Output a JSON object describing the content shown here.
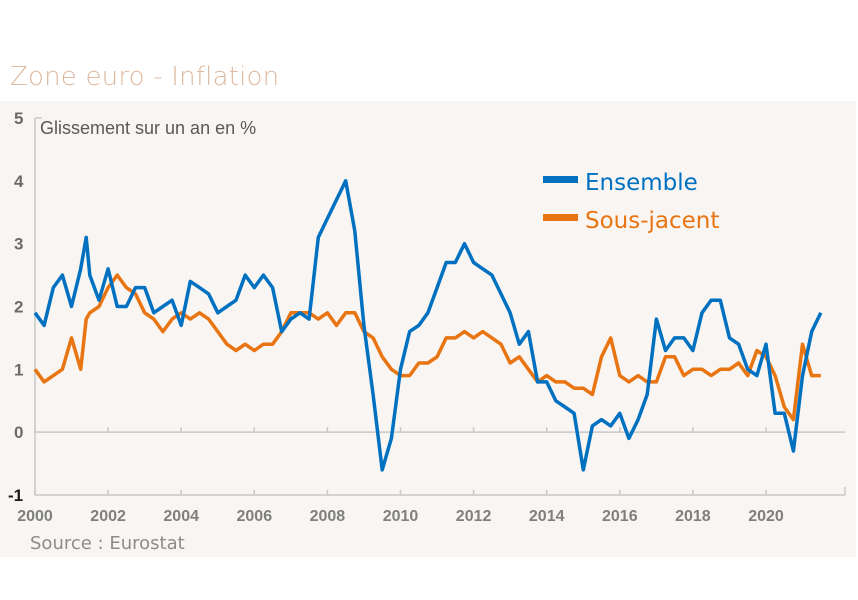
{
  "title": "Zone euro - Inflation",
  "source": "Source : Eurostat",
  "chart_data": {
    "type": "line",
    "title": "Zone euro - Inflation",
    "subtitle": "Glissement sur un an en %",
    "xlabel": "",
    "ylabel": "Glissement sur un an en %",
    "xlim": [
      2000,
      2022
    ],
    "ylim": [
      -1,
      5
    ],
    "x_ticks": [
      "2000",
      "2002",
      "2004",
      "2006",
      "2008",
      "2010",
      "2012",
      "2014",
      "2016",
      "2018",
      "2020"
    ],
    "y_ticks": [
      "5",
      "4",
      "3",
      "2",
      "1",
      "0",
      "-1"
    ],
    "grid": false,
    "legend_position": "top-right",
    "colors": {
      "Ensemble": "#0070c0",
      "Sous-jacent": "#e87511"
    },
    "x": [
      2000.0,
      2000.25,
      2000.5,
      2000.75,
      2001.0,
      2001.25,
      2001.4,
      2001.5,
      2001.75,
      2002.0,
      2002.25,
      2002.5,
      2002.75,
      2003.0,
      2003.25,
      2003.5,
      2003.75,
      2004.0,
      2004.25,
      2004.5,
      2004.75,
      2005.0,
      2005.25,
      2005.5,
      2005.75,
      2006.0,
      2006.25,
      2006.5,
      2006.75,
      2007.0,
      2007.25,
      2007.5,
      2007.75,
      2008.0,
      2008.25,
      2008.5,
      2008.75,
      2009.0,
      2009.25,
      2009.5,
      2009.75,
      2010.0,
      2010.25,
      2010.5,
      2010.75,
      2011.0,
      2011.25,
      2011.5,
      2011.75,
      2012.0,
      2012.25,
      2012.5,
      2012.75,
      2013.0,
      2013.25,
      2013.5,
      2013.75,
      2014.0,
      2014.25,
      2014.5,
      2014.75,
      2015.0,
      2015.25,
      2015.5,
      2015.75,
      2016.0,
      2016.25,
      2016.5,
      2016.75,
      2017.0,
      2017.25,
      2017.5,
      2017.75,
      2018.0,
      2018.25,
      2018.5,
      2018.75,
      2019.0,
      2019.25,
      2019.5,
      2019.75,
      2020.0,
      2020.25,
      2020.5,
      2020.75,
      2021.0,
      2021.25,
      2021.5
    ],
    "series": [
      {
        "name": "Ensemble",
        "values": [
          1.9,
          1.7,
          2.3,
          2.5,
          2.0,
          2.6,
          3.1,
          2.5,
          2.1,
          2.6,
          2.0,
          2.0,
          2.3,
          2.3,
          1.9,
          2.0,
          2.1,
          1.7,
          2.4,
          2.3,
          2.2,
          1.9,
          2.0,
          2.1,
          2.5,
          2.3,
          2.5,
          2.3,
          1.6,
          1.8,
          1.9,
          1.8,
          3.1,
          3.4,
          3.7,
          4.0,
          3.2,
          1.7,
          0.6,
          -0.6,
          -0.1,
          1.0,
          1.6,
          1.7,
          1.9,
          2.3,
          2.7,
          2.7,
          3.0,
          2.7,
          2.6,
          2.5,
          2.2,
          1.9,
          1.4,
          1.6,
          0.8,
          0.8,
          0.5,
          0.4,
          0.3,
          -0.6,
          0.1,
          0.2,
          0.1,
          0.3,
          -0.1,
          0.2,
          0.6,
          1.8,
          1.3,
          1.5,
          1.5,
          1.3,
          1.9,
          2.1,
          2.1,
          1.5,
          1.4,
          1.0,
          0.9,
          1.4,
          0.3,
          0.3,
          -0.3,
          0.9,
          1.6,
          1.9
        ]
      },
      {
        "name": "Sous-jacent",
        "values": [
          1.0,
          0.8,
          0.9,
          1.0,
          1.5,
          1.0,
          1.8,
          1.9,
          2.0,
          2.3,
          2.5,
          2.3,
          2.2,
          1.9,
          1.8,
          1.6,
          1.8,
          1.9,
          1.8,
          1.9,
          1.8,
          1.6,
          1.4,
          1.3,
          1.4,
          1.3,
          1.4,
          1.4,
          1.6,
          1.9,
          1.9,
          1.9,
          1.8,
          1.9,
          1.7,
          1.9,
          1.9,
          1.6,
          1.5,
          1.2,
          1.0,
          0.9,
          0.9,
          1.1,
          1.1,
          1.2,
          1.5,
          1.5,
          1.6,
          1.5,
          1.6,
          1.5,
          1.4,
          1.1,
          1.2,
          1.0,
          0.8,
          0.9,
          0.8,
          0.8,
          0.7,
          0.7,
          0.6,
          1.2,
          1.5,
          0.9,
          0.8,
          0.9,
          0.8,
          0.8,
          1.2,
          1.2,
          0.9,
          1.0,
          1.0,
          0.9,
          1.0,
          1.0,
          1.1,
          0.9,
          1.3,
          1.2,
          0.9,
          0.4,
          0.2,
          1.4,
          0.9,
          0.9
        ]
      }
    ]
  }
}
